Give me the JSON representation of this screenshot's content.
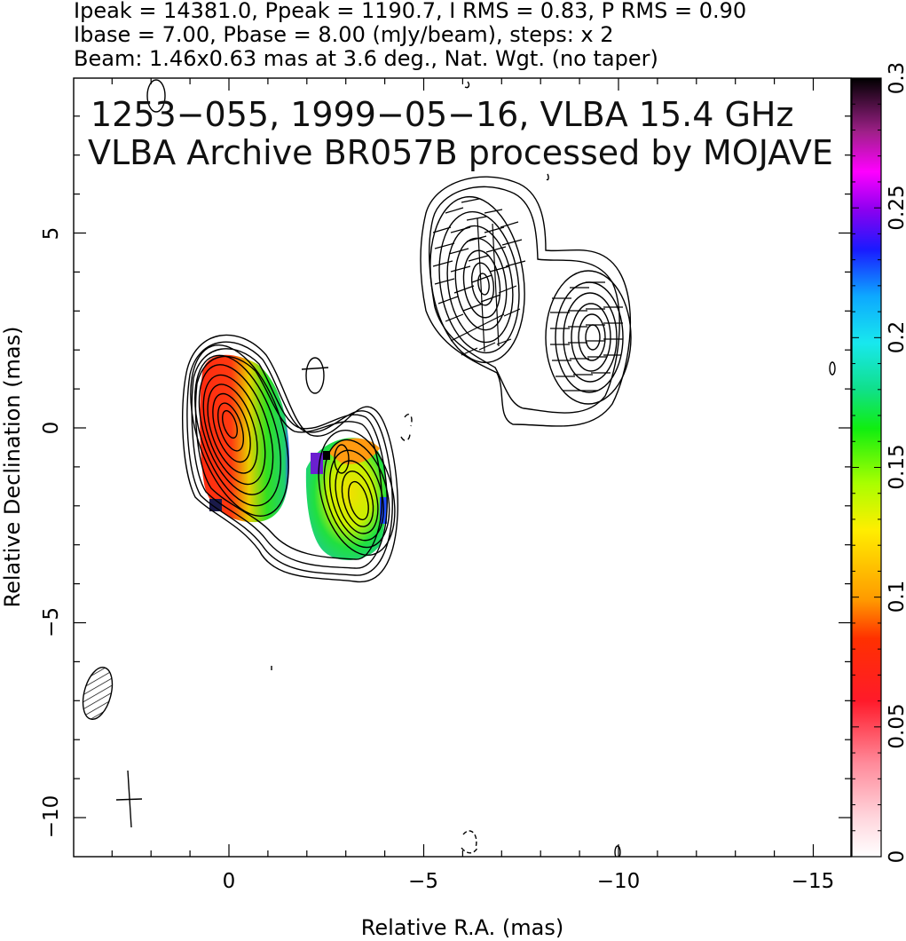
{
  "header": {
    "line1": "Ipeak = 14381.0, Ppeak = 1190.7, I RMS = 0.83, P RMS = 0.90",
    "line2": "Ibase = 7.00, Pbase = 8.00 (mJy/beam), steps: x 2",
    "line3": "Beam: 1.46x0.63 mas at 3.6 deg., Nat. Wgt. (no taper)"
  },
  "plot": {
    "label1": "1253−055, 1999−05−16, VLBA 15.4 GHz",
    "label2": "VLBA Archive BR057B processed by MOJAVE",
    "xlabel": "Relative R.A. (mas)",
    "ylabel": "Relative Declination (mas)",
    "x_ticks": [
      "0",
      "−5",
      "−10",
      "−15"
    ],
    "y_ticks": [
      "5",
      "0",
      "−5",
      "−10"
    ],
    "colorbar_ticks": [
      "0",
      "0.05",
      "0.1",
      "0.15",
      "0.2",
      "0.25",
      "0.3"
    ]
  }
}
